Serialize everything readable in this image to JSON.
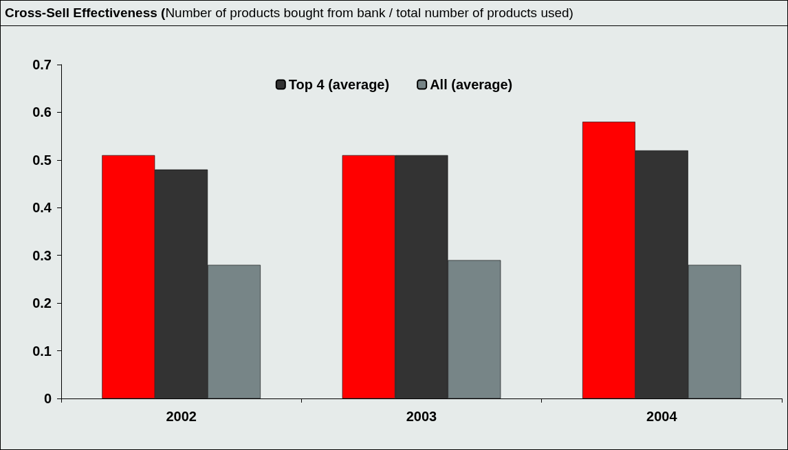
{
  "chart_data": {
    "type": "bar",
    "title": "Cross-Sell Effectiveness (Number of products bought from bank / total number of products used)",
    "categories": [
      "2002",
      "2003",
      "2004"
    ],
    "series": [
      {
        "color": "#ff0000",
        "values": [
          0.51,
          0.51,
          0.58
        ]
      },
      {
        "name": "Top 4 (average)",
        "color": "#333333",
        "values": [
          0.48,
          0.51,
          0.52
        ]
      },
      {
        "name": "All (average)",
        "color": "#778587",
        "values": [
          0.28,
          0.29,
          0.28
        ]
      }
    ],
    "ylim": [
      0,
      0.7
    ],
    "yticks": [
      0,
      0.1,
      0.2,
      0.3,
      0.4,
      0.5,
      0.6,
      0.7
    ],
    "grid": false,
    "legend": "top"
  }
}
